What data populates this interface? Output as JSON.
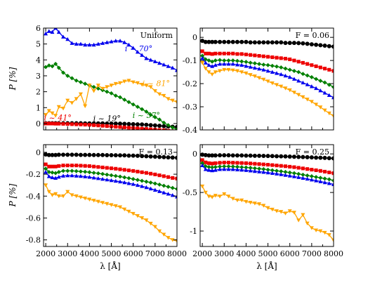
{
  "figure": {
    "ylabel": "P [%]",
    "xlabel": "λ [Å]"
  },
  "chart_data": [
    {
      "type": "line",
      "title": "Uniform",
      "xlabel": "",
      "ylabel": "P [%]",
      "xlim": [
        1900,
        8000
      ],
      "ylim": [
        -0.4,
        6
      ],
      "xticks": [
        2000,
        3000,
        4000,
        5000,
        6000,
        7000,
        8000
      ],
      "xtick_labels": [
        "",
        "",
        "",
        "",
        "",
        "",
        ""
      ],
      "yticks": [
        0,
        1,
        2,
        3,
        4,
        5,
        6
      ],
      "ytick_labels": [
        "0",
        "1",
        "2",
        "3",
        "4",
        "5",
        "6"
      ],
      "annotations": [
        {
          "text": "i ~ 70°",
          "x": 6250,
          "y": 4.55,
          "color": "#0000ee"
        },
        {
          "text": "i ~ 81°",
          "x": 7050,
          "y": 2.35,
          "color": "#ffa500"
        },
        {
          "text": "i ~ 57°",
          "x": 6600,
          "y": 0.35,
          "color": "#008000"
        },
        {
          "text": "i ~ 41°",
          "x": 2550,
          "y": 0.2,
          "color": "#ee0000"
        },
        {
          "text": "i ~ 19°",
          "x": 4800,
          "y": 0.15,
          "color": "#000000"
        }
      ],
      "x": [
        2000,
        2150,
        2300,
        2450,
        2600,
        2800,
        3000,
        3200,
        3400,
        3600,
        3800,
        4000,
        4200,
        4400,
        4600,
        4800,
        5000,
        5200,
        5400,
        5600,
        5800,
        6000,
        6200,
        6400,
        6600,
        6800,
        7000,
        7200,
        7400,
        7600,
        7800,
        8000
      ],
      "series": [
        {
          "color": "#000000",
          "marker": "circle",
          "values": [
            0.02,
            0.02,
            0.02,
            0.02,
            0.02,
            0.02,
            0.02,
            0.02,
            0.02,
            0.02,
            0.01,
            0.01,
            0.01,
            0.01,
            0.01,
            0.0,
            0.0,
            0.0,
            -0.01,
            -0.02,
            -0.03,
            -0.04,
            -0.05,
            -0.06,
            -0.08,
            -0.1,
            -0.12,
            -0.14,
            -0.16,
            -0.18,
            -0.2,
            -0.22
          ]
        },
        {
          "color": "#ee0000",
          "marker": "square",
          "values": [
            0.0,
            0.0,
            0.0,
            -0.01,
            -0.01,
            -0.02,
            -0.03,
            -0.04,
            -0.05,
            -0.06,
            -0.07,
            -0.08,
            -0.1,
            -0.12,
            -0.14,
            -0.16,
            -0.18,
            -0.2,
            -0.22,
            -0.24,
            -0.26,
            -0.28,
            -0.3,
            -0.32,
            -0.34,
            -0.36,
            -0.38,
            -0.4,
            -0.42,
            -0.45,
            -0.48,
            -0.5
          ]
        },
        {
          "color": "#0000ee",
          "marker": "triangle-up",
          "values": [
            5.65,
            5.8,
            5.75,
            6.0,
            5.75,
            5.45,
            5.3,
            5.05,
            5.0,
            5.0,
            4.95,
            4.95,
            4.95,
            5.0,
            5.05,
            5.1,
            5.15,
            5.2,
            5.2,
            5.1,
            4.95,
            4.75,
            4.5,
            4.3,
            4.1,
            4.0,
            3.9,
            3.8,
            3.7,
            3.6,
            3.5,
            3.35
          ]
        },
        {
          "color": "#008000",
          "marker": "diamond",
          "values": [
            3.55,
            3.65,
            3.6,
            3.75,
            3.5,
            3.2,
            3.0,
            2.85,
            2.7,
            2.6,
            2.5,
            2.4,
            2.3,
            2.2,
            2.1,
            2.0,
            1.9,
            1.75,
            1.65,
            1.5,
            1.35,
            1.2,
            1.05,
            0.9,
            0.75,
            0.55,
            0.4,
            0.25,
            0.05,
            -0.1,
            -0.25,
            -0.35
          ]
        },
        {
          "color": "#ffa500",
          "marker": "triangle-down",
          "values": [
            0.55,
            0.8,
            0.65,
            0.5,
            1.05,
            0.95,
            1.45,
            1.3,
            1.55,
            1.85,
            1.1,
            2.4,
            2.05,
            2.4,
            2.2,
            2.3,
            2.4,
            2.5,
            2.55,
            2.65,
            2.7,
            2.6,
            2.55,
            2.45,
            2.4,
            2.3,
            2.05,
            1.85,
            1.75,
            1.55,
            1.45,
            1.35
          ]
        }
      ]
    },
    {
      "type": "line",
      "title": "F = 0.06",
      "xlabel": "",
      "ylabel": "",
      "xlim": [
        1900,
        8000
      ],
      "ylim": [
        -0.4,
        0.04
      ],
      "xticks": [
        2000,
        3000,
        4000,
        5000,
        6000,
        7000,
        8000
      ],
      "xtick_labels": [
        "",
        "",
        "",
        "",
        "",
        "",
        ""
      ],
      "yticks": [
        0,
        -0.1,
        -0.2,
        -0.3,
        -0.4
      ],
      "ytick_labels": [
        "0",
        "-0.1",
        "-0.2",
        "-0.3",
        "-0.4"
      ],
      "x": [
        2000,
        2150,
        2300,
        2450,
        2600,
        2800,
        3000,
        3200,
        3400,
        3600,
        3800,
        4000,
        4200,
        4400,
        4600,
        4800,
        5000,
        5200,
        5400,
        5600,
        5800,
        6000,
        6200,
        6400,
        6600,
        6800,
        7000,
        7200,
        7400,
        7600,
        7800,
        8000
      ],
      "series": [
        {
          "color": "#000000",
          "marker": "circle",
          "values": [
            -0.015,
            -0.02,
            -0.02,
            -0.02,
            -0.02,
            -0.02,
            -0.02,
            -0.02,
            -0.02,
            -0.02,
            -0.02,
            -0.02,
            -0.022,
            -0.022,
            -0.022,
            -0.022,
            -0.022,
            -0.022,
            -0.022,
            -0.022,
            -0.024,
            -0.024,
            -0.024,
            -0.025,
            -0.026,
            -0.028,
            -0.03,
            -0.032,
            -0.034,
            -0.036,
            -0.038,
            -0.04
          ]
        },
        {
          "color": "#ee0000",
          "marker": "square",
          "values": [
            -0.06,
            -0.07,
            -0.07,
            -0.072,
            -0.07,
            -0.07,
            -0.07,
            -0.07,
            -0.07,
            -0.072,
            -0.072,
            -0.074,
            -0.076,
            -0.078,
            -0.08,
            -0.082,
            -0.084,
            -0.086,
            -0.088,
            -0.09,
            -0.092,
            -0.095,
            -0.1,
            -0.105,
            -0.11,
            -0.115,
            -0.12,
            -0.125,
            -0.13,
            -0.135,
            -0.14,
            -0.145
          ]
        },
        {
          "color": "#008000",
          "marker": "diamond",
          "values": [
            -0.08,
            -0.095,
            -0.1,
            -0.105,
            -0.1,
            -0.098,
            -0.1,
            -0.1,
            -0.1,
            -0.102,
            -0.104,
            -0.106,
            -0.11,
            -0.112,
            -0.115,
            -0.118,
            -0.12,
            -0.123,
            -0.126,
            -0.13,
            -0.135,
            -0.14,
            -0.145,
            -0.15,
            -0.158,
            -0.165,
            -0.172,
            -0.18,
            -0.188,
            -0.195,
            -0.205,
            -0.215
          ]
        },
        {
          "color": "#0000ee",
          "marker": "triangle-up",
          "values": [
            -0.09,
            -0.11,
            -0.12,
            -0.125,
            -0.12,
            -0.115,
            -0.115,
            -0.115,
            -0.115,
            -0.118,
            -0.12,
            -0.124,
            -0.128,
            -0.132,
            -0.136,
            -0.14,
            -0.145,
            -0.15,
            -0.155,
            -0.16,
            -0.166,
            -0.172,
            -0.18,
            -0.188,
            -0.196,
            -0.204,
            -0.212,
            -0.22,
            -0.23,
            -0.24,
            -0.25,
            -0.26
          ]
        },
        {
          "color": "#ffa500",
          "marker": "triangle-down",
          "values": [
            -0.11,
            -0.135,
            -0.15,
            -0.16,
            -0.15,
            -0.145,
            -0.14,
            -0.14,
            -0.142,
            -0.145,
            -0.15,
            -0.155,
            -0.162,
            -0.168,
            -0.175,
            -0.182,
            -0.19,
            -0.198,
            -0.205,
            -0.212,
            -0.22,
            -0.228,
            -0.238,
            -0.248,
            -0.258,
            -0.268,
            -0.278,
            -0.29,
            -0.302,
            -0.315,
            -0.328,
            -0.34
          ]
        }
      ]
    },
    {
      "type": "line",
      "title": "F = 0.13",
      "xlabel": "λ [Å]",
      "ylabel": "P [%]",
      "xlim": [
        1900,
        8000
      ],
      "ylim": [
        -0.86,
        0.07
      ],
      "xticks": [
        2000,
        3000,
        4000,
        5000,
        6000,
        7000,
        8000
      ],
      "xtick_labels": [
        "2000",
        "3000",
        "4000",
        "5000",
        "6000",
        "7000",
        "8000"
      ],
      "yticks": [
        0,
        -0.2,
        -0.4,
        -0.6,
        -0.8
      ],
      "ytick_labels": [
        "0",
        "-0.2",
        "-0.4",
        "-0.6",
        "-0.8"
      ],
      "x": [
        2000,
        2150,
        2300,
        2450,
        2600,
        2800,
        3000,
        3200,
        3400,
        3600,
        3800,
        4000,
        4200,
        4400,
        4600,
        4800,
        5000,
        5200,
        5400,
        5600,
        5800,
        6000,
        6200,
        6400,
        6600,
        6800,
        7000,
        7200,
        7400,
        7600,
        7800,
        8000
      ],
      "series": [
        {
          "color": "#000000",
          "marker": "circle",
          "values": [
            -0.02,
            -0.025,
            -0.025,
            -0.025,
            -0.022,
            -0.022,
            -0.022,
            -0.022,
            -0.022,
            -0.024,
            -0.024,
            -0.024,
            -0.025,
            -0.025,
            -0.025,
            -0.026,
            -0.026,
            -0.027,
            -0.028,
            -0.028,
            -0.03,
            -0.03,
            -0.032,
            -0.034,
            -0.036,
            -0.038,
            -0.04,
            -0.042,
            -0.044,
            -0.046,
            -0.048,
            -0.05
          ]
        },
        {
          "color": "#ee0000",
          "marker": "square",
          "values": [
            -0.11,
            -0.13,
            -0.13,
            -0.13,
            -0.125,
            -0.12,
            -0.12,
            -0.12,
            -0.12,
            -0.122,
            -0.124,
            -0.126,
            -0.13,
            -0.134,
            -0.138,
            -0.142,
            -0.146,
            -0.15,
            -0.155,
            -0.16,
            -0.165,
            -0.17,
            -0.176,
            -0.182,
            -0.188,
            -0.195,
            -0.202,
            -0.21,
            -0.218,
            -0.226,
            -0.234,
            -0.24
          ]
        },
        {
          "color": "#008000",
          "marker": "diamond",
          "values": [
            -0.15,
            -0.18,
            -0.185,
            -0.19,
            -0.18,
            -0.17,
            -0.17,
            -0.17,
            -0.172,
            -0.175,
            -0.178,
            -0.182,
            -0.187,
            -0.192,
            -0.198,
            -0.204,
            -0.21,
            -0.216,
            -0.222,
            -0.229,
            -0.236,
            -0.244,
            -0.252,
            -0.26,
            -0.268,
            -0.276,
            -0.285,
            -0.295,
            -0.305,
            -0.315,
            -0.325,
            -0.335
          ]
        },
        {
          "color": "#0000ee",
          "marker": "triangle-up",
          "values": [
            -0.18,
            -0.22,
            -0.23,
            -0.235,
            -0.225,
            -0.215,
            -0.212,
            -0.212,
            -0.215,
            -0.218,
            -0.222,
            -0.226,
            -0.232,
            -0.238,
            -0.244,
            -0.25,
            -0.256,
            -0.262,
            -0.268,
            -0.275,
            -0.283,
            -0.291,
            -0.3,
            -0.31,
            -0.32,
            -0.332,
            -0.344,
            -0.356,
            -0.368,
            -0.38,
            -0.392,
            -0.405
          ]
        },
        {
          "color": "#ffa500",
          "marker": "triangle-down",
          "values": [
            -0.3,
            -0.36,
            -0.39,
            -0.38,
            -0.4,
            -0.4,
            -0.36,
            -0.39,
            -0.4,
            -0.41,
            -0.42,
            -0.43,
            -0.44,
            -0.45,
            -0.46,
            -0.47,
            -0.48,
            -0.49,
            -0.5,
            -0.52,
            -0.54,
            -0.56,
            -0.58,
            -0.6,
            -0.62,
            -0.65,
            -0.68,
            -0.72,
            -0.75,
            -0.78,
            -0.8,
            -0.81
          ]
        }
      ]
    },
    {
      "type": "line",
      "title": "F = 0.25",
      "xlabel": "λ [Å]",
      "ylabel": "",
      "xlim": [
        1900,
        8000
      ],
      "ylim": [
        -1.2,
        0.12
      ],
      "xticks": [
        2000,
        3000,
        4000,
        5000,
        6000,
        7000,
        8000
      ],
      "xtick_labels": [
        "2000",
        "3000",
        "4000",
        "5000",
        "6000",
        "7000",
        "8000"
      ],
      "yticks": [
        0,
        -0.5,
        -1
      ],
      "ytick_labels": [
        "0",
        "-0.5",
        "-1"
      ],
      "x": [
        2000,
        2150,
        2300,
        2450,
        2600,
        2800,
        3000,
        3200,
        3400,
        3600,
        3800,
        4000,
        4200,
        4400,
        4600,
        4800,
        5000,
        5200,
        5400,
        5600,
        5800,
        6000,
        6200,
        6400,
        6600,
        6800,
        7000,
        7200,
        7400,
        7600,
        7800,
        8000
      ],
      "series": [
        {
          "color": "#000000",
          "marker": "circle",
          "values": [
            -0.01,
            -0.015,
            -0.02,
            -0.02,
            -0.02,
            -0.018,
            -0.018,
            -0.018,
            -0.02,
            -0.02,
            -0.02,
            -0.022,
            -0.022,
            -0.024,
            -0.025,
            -0.026,
            -0.027,
            -0.028,
            -0.03,
            -0.031,
            -0.033,
            -0.035,
            -0.037,
            -0.039,
            -0.041,
            -0.043,
            -0.045,
            -0.048,
            -0.05,
            -0.052,
            -0.055,
            -0.058
          ]
        },
        {
          "color": "#ee0000",
          "marker": "square",
          "values": [
            -0.08,
            -0.11,
            -0.12,
            -0.125,
            -0.12,
            -0.115,
            -0.112,
            -0.112,
            -0.114,
            -0.116,
            -0.118,
            -0.12,
            -0.124,
            -0.128,
            -0.132,
            -0.136,
            -0.14,
            -0.145,
            -0.15,
            -0.155,
            -0.16,
            -0.166,
            -0.172,
            -0.18,
            -0.188,
            -0.196,
            -0.204,
            -0.212,
            -0.22,
            -0.23,
            -0.24,
            -0.25
          ]
        },
        {
          "color": "#008000",
          "marker": "diamond",
          "values": [
            -0.12,
            -0.16,
            -0.17,
            -0.175,
            -0.17,
            -0.165,
            -0.162,
            -0.162,
            -0.165,
            -0.168,
            -0.172,
            -0.176,
            -0.18,
            -0.186,
            -0.192,
            -0.198,
            -0.205,
            -0.212,
            -0.219,
            -0.226,
            -0.234,
            -0.242,
            -0.25,
            -0.26,
            -0.27,
            -0.28,
            -0.29,
            -0.3,
            -0.31,
            -0.32,
            -0.33,
            -0.345
          ]
        },
        {
          "color": "#0000ee",
          "marker": "triangle-up",
          "values": [
            -0.15,
            -0.2,
            -0.21,
            -0.215,
            -0.21,
            -0.2,
            -0.198,
            -0.198,
            -0.2,
            -0.204,
            -0.208,
            -0.212,
            -0.218,
            -0.224,
            -0.23,
            -0.236,
            -0.243,
            -0.25,
            -0.258,
            -0.266,
            -0.275,
            -0.284,
            -0.293,
            -0.303,
            -0.313,
            -0.324,
            -0.335,
            -0.346,
            -0.358,
            -0.37,
            -0.382,
            -0.395
          ]
        },
        {
          "color": "#ffa500",
          "marker": "triangle-down",
          "values": [
            -0.42,
            -0.5,
            -0.55,
            -0.56,
            -0.54,
            -0.55,
            -0.52,
            -0.55,
            -0.58,
            -0.6,
            -0.6,
            -0.62,
            -0.63,
            -0.64,
            -0.65,
            -0.67,
            -0.7,
            -0.72,
            -0.74,
            -0.75,
            -0.77,
            -0.74,
            -0.76,
            -0.86,
            -0.79,
            -0.9,
            -0.96,
            -0.99,
            -1.0,
            -1.02,
            -1.05,
            -1.12
          ]
        }
      ]
    }
  ]
}
